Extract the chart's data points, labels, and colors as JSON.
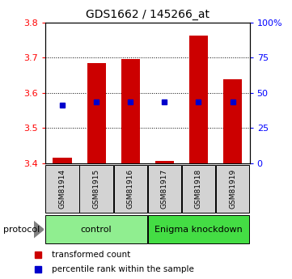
{
  "title": "GDS1662 / 145266_at",
  "samples": [
    "GSM81914",
    "GSM81915",
    "GSM81916",
    "GSM81917",
    "GSM81918",
    "GSM81919"
  ],
  "bar_values": [
    3.415,
    3.685,
    3.695,
    3.407,
    3.762,
    3.638
  ],
  "bar_baseline": 3.4,
  "blue_marker_values": [
    3.566,
    3.573,
    3.573,
    3.573,
    3.573,
    3.573
  ],
  "bar_color": "#CC0000",
  "blue_color": "#0000CC",
  "left_ylim": [
    3.4,
    3.8
  ],
  "left_yticks": [
    3.4,
    3.5,
    3.6,
    3.7,
    3.8
  ],
  "right_ylim": [
    0,
    100
  ],
  "right_yticks": [
    0,
    25,
    50,
    75,
    100
  ],
  "right_yticklabels": [
    "0",
    "25",
    "50",
    "75",
    "100%"
  ],
  "groups": [
    {
      "label": "control",
      "start": 0,
      "end": 3,
      "color": "#90EE90"
    },
    {
      "label": "Enigma knockdown",
      "start": 3,
      "end": 6,
      "color": "#44DD44"
    }
  ],
  "protocol_label": "protocol",
  "legend_items": [
    {
      "label": "transformed count",
      "color": "#CC0000",
      "marker": "s"
    },
    {
      "label": "percentile rank within the sample",
      "color": "#0000CC",
      "marker": "s"
    }
  ],
  "bar_width": 0.55,
  "sample_box_color": "#D3D3D3",
  "sample_box_edge": "black"
}
